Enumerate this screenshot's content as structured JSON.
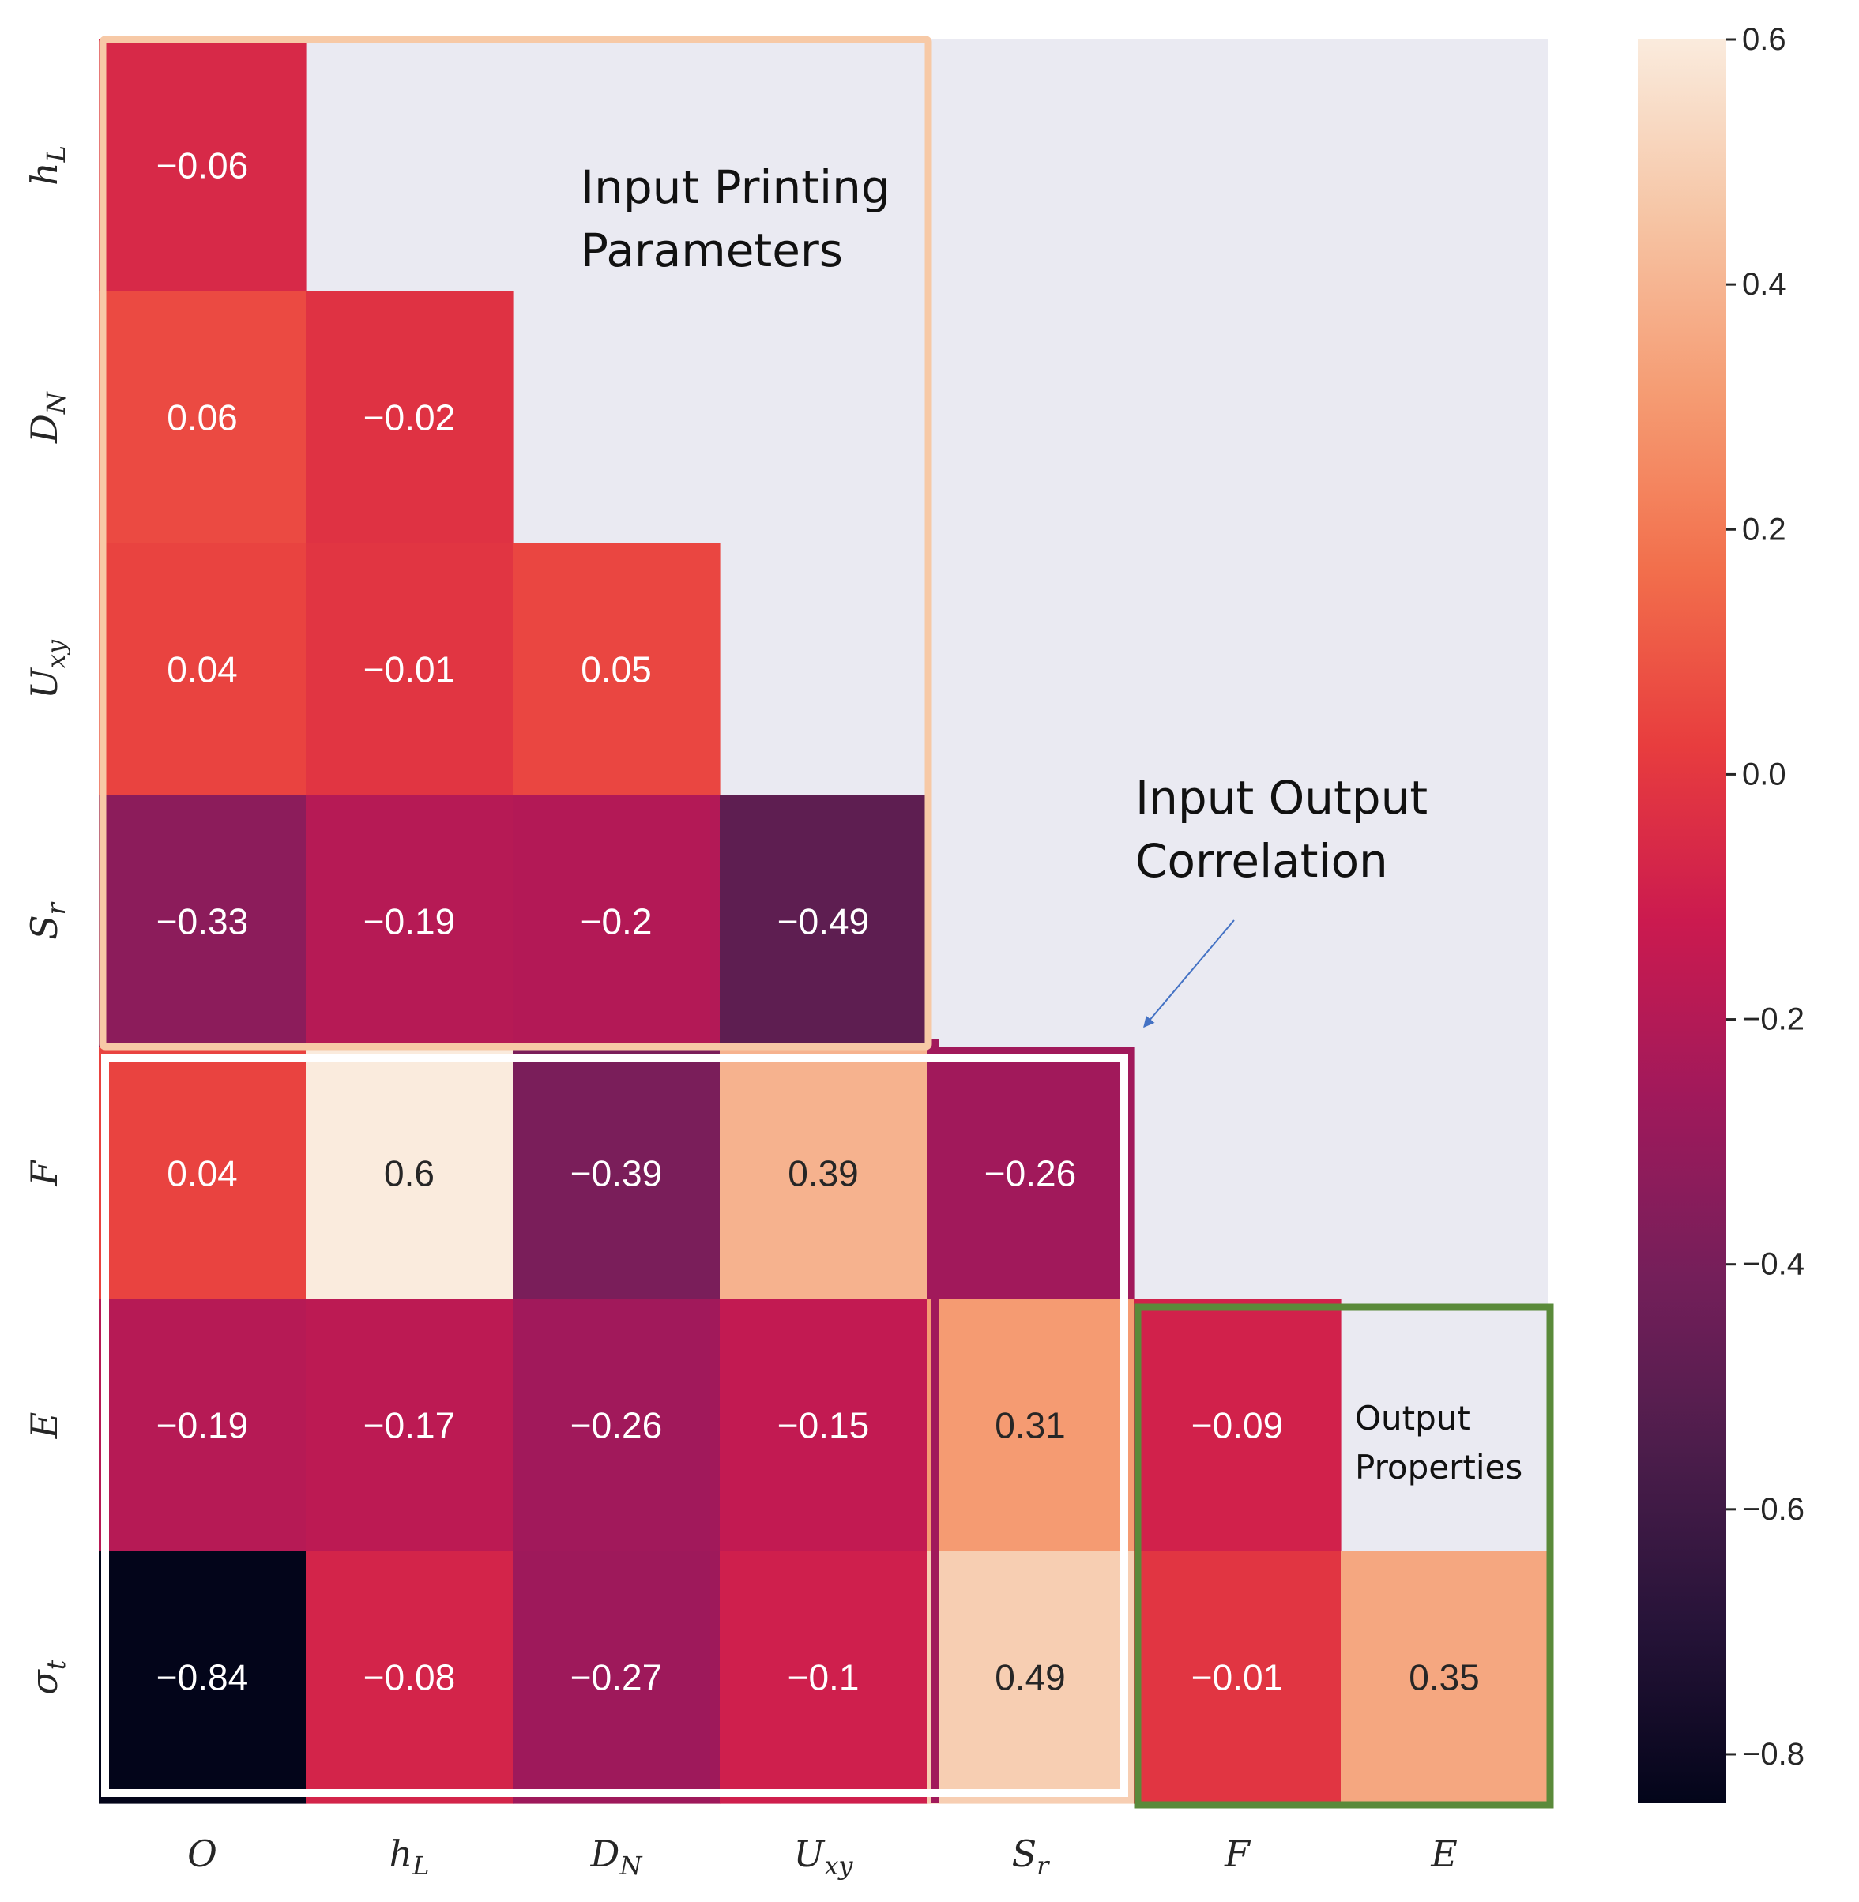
{
  "chart_data": {
    "type": "heatmap",
    "title": "",
    "mask": "lower-triangle (diagonal removed)",
    "row_labels": [
      {
        "base": "h",
        "sub": "L"
      },
      {
        "base": "D",
        "sub": "N"
      },
      {
        "base": "U",
        "sub": "xy"
      },
      {
        "base": "S",
        "sub": "r"
      },
      {
        "base": "F",
        "sub": ""
      },
      {
        "base": "E",
        "sub": ""
      },
      {
        "base": "σ",
        "sub": "t"
      }
    ],
    "col_labels": [
      {
        "base": "O",
        "sub": ""
      },
      {
        "base": "h",
        "sub": "L"
      },
      {
        "base": "D",
        "sub": "N"
      },
      {
        "base": "U",
        "sub": "xy"
      },
      {
        "base": "S",
        "sub": "r"
      },
      {
        "base": "F",
        "sub": ""
      },
      {
        "base": "E",
        "sub": ""
      }
    ],
    "values": [
      [
        -0.06,
        null,
        null,
        null,
        null,
        null,
        null
      ],
      [
        0.06,
        -0.02,
        null,
        null,
        null,
        null,
        null
      ],
      [
        0.04,
        -0.01,
        0.05,
        null,
        null,
        null,
        null
      ],
      [
        -0.33,
        -0.19,
        -0.2,
        -0.49,
        null,
        null,
        null
      ],
      [
        0.04,
        0.6,
        -0.39,
        0.39,
        -0.26,
        null,
        null
      ],
      [
        -0.19,
        -0.17,
        -0.26,
        -0.15,
        0.31,
        -0.09,
        null
      ],
      [
        -0.84,
        -0.08,
        -0.27,
        -0.1,
        0.49,
        -0.01,
        0.35
      ]
    ],
    "cell_labels": [
      [
        "−0.06"
      ],
      [
        "0.06",
        "−0.02"
      ],
      [
        "0.04",
        "−0.01",
        "0.05"
      ],
      [
        "−0.33",
        "−0.19",
        "−0.2",
        "−0.49"
      ],
      [
        "0.04",
        "0.6",
        "−0.39",
        "0.39",
        "−0.26"
      ],
      [
        "−0.19",
        "−0.17",
        "−0.26",
        "−0.15",
        "0.31",
        "−0.09"
      ],
      [
        "−0.84",
        "−0.08",
        "−0.27",
        "−0.1",
        "0.49",
        "−0.01",
        "0.35"
      ]
    ],
    "colorbar": {
      "colormap": "rocket",
      "vmin": -0.84,
      "vmax": 0.6,
      "ticks": [
        0.6,
        0.4,
        0.2,
        0.0,
        -0.2,
        -0.4,
        -0.6,
        -0.8
      ],
      "tick_labels": [
        "0.6",
        "0.4",
        "0.2",
        "0.0",
        "−0.2",
        "−0.4",
        "−0.6",
        "−0.8"
      ]
    },
    "annotations": [
      {
        "id": "input-printing-parameters",
        "lines": [
          "Input Printing",
          "Parameters"
        ],
        "box_color": "#f7c9a6"
      },
      {
        "id": "input-output-correlation",
        "lines": [
          "Input Output",
          "Correlation"
        ],
        "box_color": "#ffffff",
        "arrow": true
      },
      {
        "id": "output-properties",
        "lines": [
          "Output",
          "Properties"
        ],
        "box_color": "#5a8a3a"
      }
    ],
    "background_color": "#eaeaf2"
  }
}
